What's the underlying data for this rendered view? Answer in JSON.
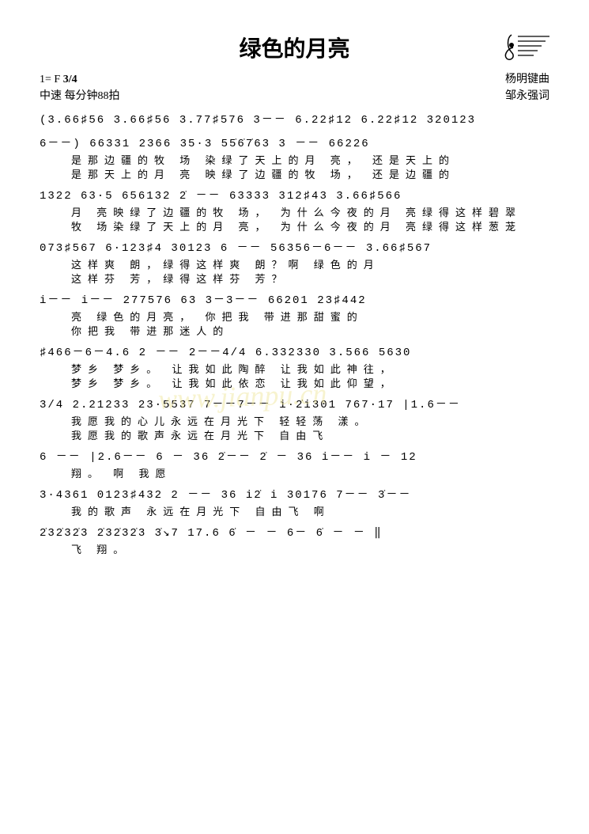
{
  "title": "绿色的月亮",
  "key": "1= F",
  "timeSignature": "3/4",
  "tempo": "中速 每分钟88拍",
  "composer": "杨明键曲",
  "lyricist": "邹永强词",
  "watermark": "www.jianpu.cn",
  "lines": [
    {
      "notation": "(3.66♯56 3.66♯56 3.77♯576 3－－ 6.22♯12 6.22♯12 320123",
      "lyric1": "",
      "lyric2": ""
    },
    {
      "notation": "6－－) 66331 2366  35·3 55̇6̇7̇63 3 －－ 66226",
      "lyric1": "是那边疆的牧  场 染绿了天上的月  亮，   还是天上的",
      "lyric2": "是那天上的月  亮 映绿了边疆的牧  场，   还是边疆的"
    },
    {
      "notation": "1322 63·5 656132 2̇ －－ 63333 312♯43 3.66♯566",
      "lyric1": "月 亮映绿了边疆的牧   场， 为什么今夜的月 亮绿得这样碧翠",
      "lyric2": "牧 场染绿了天上的月   亮， 为什么今夜的月 亮绿得这样葱茏"
    },
    {
      "notation": "073♯567 6·123♯4 30123 6 －－ 56356－6－－ 3.66♯567",
      "lyric1": "这样爽  朗，绿得这样爽   朗？啊          绿色的月",
      "lyric2": "这样芬  芳，绿得这样芬   芳？"
    },
    {
      "notation": "i－－ i－－ 277576 63 3－3－－ 66201 23♯442",
      "lyric1": "亮       绿色的月亮，     你把我 带进那甜蜜的",
      "lyric2": "                         你把我 带进那迷人的"
    },
    {
      "notation": "♯466－6－4.6 2 －－ 2－－4/4 6.332330 3.566 5630",
      "lyric1": "梦乡  梦乡。          让我如此陶醉 让我如此神往，",
      "lyric2": "梦乡  梦乡。          让我如此依恋 让我如此仰望，"
    },
    {
      "notation": "3/4 2.21233 23·5537 7－－7－－ i·2̇i301 767·17 |1.6－－",
      "lyric1": "我愿我的心儿永远在月光下    轻轻荡    漾。",
      "lyric2": "我愿我的歌声永远在月光下    自由飞"
    },
    {
      "notation": "6 －－ |2.6－－ 6 － 36 2̇－－ 2̇ － 36 i－－ i － 12",
      "lyric1": "      翔。                  啊           我愿",
      "lyric2": ""
    },
    {
      "notation": "3·4361 0123♯432 2 －－ 36 i2̇ i 30176 7－－ 3̇－－",
      "lyric1": "我的歌声 永远在月光下   自由飞        啊",
      "lyric2": ""
    },
    {
      "notation": "2̇32̇32̇3 2̇32̇32̇3 3̇↘7 17.6  6̇ － － 6－ 6̇ － － ‖",
      "lyric1": "            飞    翔。",
      "lyric2": ""
    }
  ]
}
